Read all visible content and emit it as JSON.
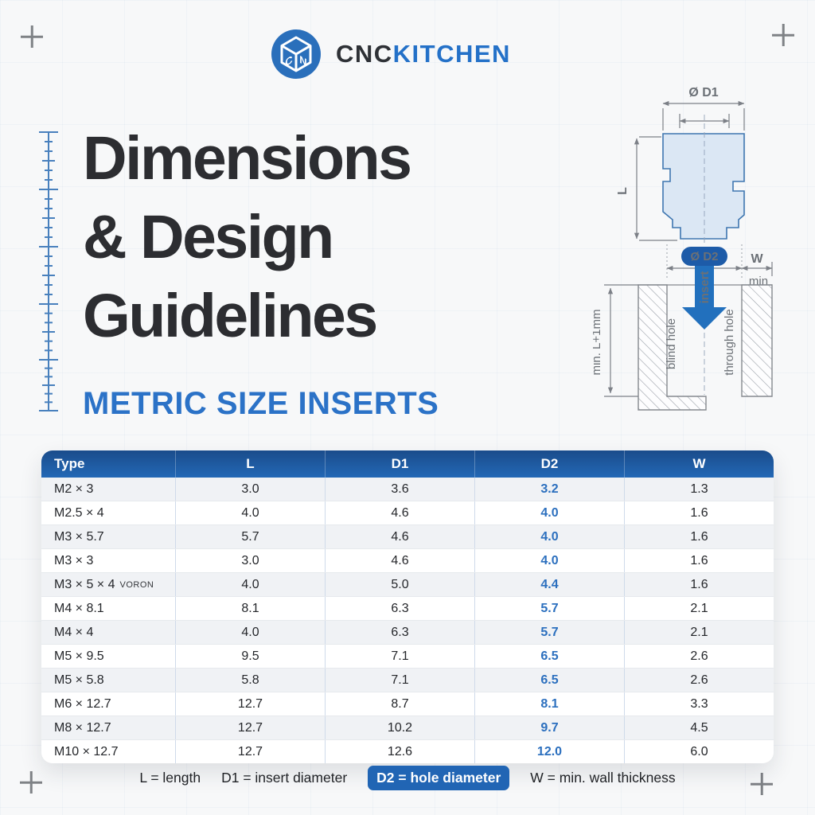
{
  "brand": {
    "logo_text_primary": "CNC",
    "logo_text_secondary": "KITCHEN"
  },
  "title": {
    "line1": "Dimensions",
    "line2": "& Design",
    "line3": "Guidelines",
    "subtitle": "METRIC SIZE INSERTS"
  },
  "diagram": {
    "labels": {
      "d1": "Ø D1",
      "l": "L",
      "d2": "Ø D2",
      "w": "W",
      "min": "min",
      "insert": "insert",
      "blind_hole": "blind hole",
      "through_hole": "through hole",
      "min_depth": "min. L+1mm"
    }
  },
  "table": {
    "headers": [
      "Type",
      "L",
      "D1",
      "D2",
      "W"
    ],
    "rows": [
      {
        "type": "M2 × 3",
        "type_suffix": "",
        "l": "3.0",
        "d1": "3.6",
        "d2": "3.2",
        "w": "1.3"
      },
      {
        "type": "M2.5 × 4",
        "type_suffix": "",
        "l": "4.0",
        "d1": "4.6",
        "d2": "4.0",
        "w": "1.6"
      },
      {
        "type": "M3 × 5.7",
        "type_suffix": "",
        "l": "5.7",
        "d1": "4.6",
        "d2": "4.0",
        "w": "1.6"
      },
      {
        "type": "M3 × 3",
        "type_suffix": "",
        "l": "3.0",
        "d1": "4.6",
        "d2": "4.0",
        "w": "1.6"
      },
      {
        "type": "M3 × 5 × 4",
        "type_suffix": "VORON",
        "l": "4.0",
        "d1": "5.0",
        "d2": "4.4",
        "w": "1.6"
      },
      {
        "type": "M4 × 8.1",
        "type_suffix": "",
        "l": "8.1",
        "d1": "6.3",
        "d2": "5.7",
        "w": "2.1"
      },
      {
        "type": "M4 × 4",
        "type_suffix": "",
        "l": "4.0",
        "d1": "6.3",
        "d2": "5.7",
        "w": "2.1"
      },
      {
        "type": "M5 × 9.5",
        "type_suffix": "",
        "l": "9.5",
        "d1": "7.1",
        "d2": "6.5",
        "w": "2.6"
      },
      {
        "type": "M5 × 5.8",
        "type_suffix": "",
        "l": "5.8",
        "d1": "7.1",
        "d2": "6.5",
        "w": "2.6"
      },
      {
        "type": "M6 × 12.7",
        "type_suffix": "",
        "l": "12.7",
        "d1": "8.7",
        "d2": "8.1",
        "w": "3.3"
      },
      {
        "type": "M8 × 12.7",
        "type_suffix": "",
        "l": "12.7",
        "d1": "10.2",
        "d2": "9.7",
        "w": "4.5"
      },
      {
        "type": "M10 × 12.7",
        "type_suffix": "",
        "l": "12.7",
        "d1": "12.6",
        "d2": "12.0",
        "w": "6.0"
      }
    ]
  },
  "legend": {
    "items": [
      {
        "text": "L = length",
        "highlight": false
      },
      {
        "text": "D1 = insert diameter",
        "highlight": false
      },
      {
        "text": "D2 = hole diameter",
        "highlight": true
      },
      {
        "text": "W = min. wall thickness",
        "highlight": false
      }
    ]
  },
  "colors": {
    "brand_blue": "#2471c8",
    "table_header_top": "#1a4c8b",
    "table_header_bottom": "#2368b6",
    "d2_accent": "#2b6fbe",
    "badge_blue": "#1d5ba8",
    "insert_arrow_blue": "#2270bd",
    "title_dark": "#2c2d31"
  }
}
